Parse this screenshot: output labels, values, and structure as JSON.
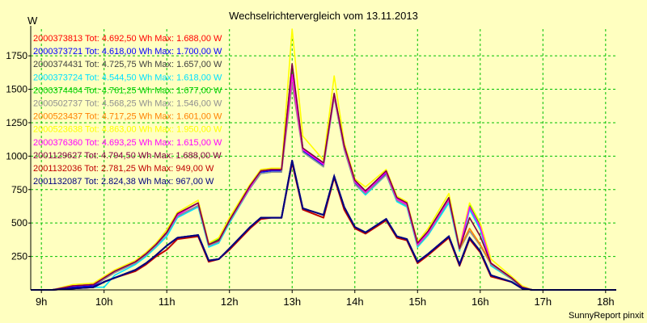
{
  "chart_data": {
    "type": "line",
    "title": "Wechselrichtervergleich vom 13.11.2013",
    "ylabel": "W",
    "xlabel": "",
    "footer": "SunnyReport pinxit",
    "ylim": [
      0,
      1950
    ],
    "xlim": [
      8.83,
      18.17
    ],
    "y_ticks": [
      250,
      500,
      750,
      1000,
      1250,
      1500,
      1750
    ],
    "x_ticks": [
      {
        "value": 9,
        "label": "9h"
      },
      {
        "value": 10,
        "label": "10h"
      },
      {
        "value": 11,
        "label": "11h"
      },
      {
        "value": 12,
        "label": "12h"
      },
      {
        "value": 13,
        "label": "13h"
      },
      {
        "value": 14,
        "label": "14h"
      },
      {
        "value": 15,
        "label": "15h"
      },
      {
        "value": 16,
        "label": "16h"
      },
      {
        "value": 17,
        "label": "17h"
      },
      {
        "value": 18,
        "label": "18h"
      }
    ],
    "grid": true,
    "legend_position": "top-left",
    "x": [
      8.83,
      9.17,
      9.5,
      9.83,
      10.0,
      10.17,
      10.5,
      10.67,
      10.83,
      11.0,
      11.17,
      11.5,
      11.67,
      11.83,
      12.0,
      12.33,
      12.5,
      12.67,
      12.83,
      13.0,
      13.17,
      13.5,
      13.67,
      13.83,
      14.0,
      14.17,
      14.5,
      14.67,
      14.83,
      15.0,
      15.17,
      15.5,
      15.67,
      15.83,
      16.0,
      16.17,
      16.5,
      16.67,
      16.83,
      17.0,
      17.17,
      17.5,
      17.67,
      17.83,
      18.0,
      18.17
    ],
    "series": [
      {
        "name": "2000373813 Tot: 4.692,50 Wh Max: 1.688,00 W",
        "color": "#ff0000",
        "values": [
          0,
          0,
          30,
          40,
          90,
          140,
          210,
          270,
          340,
          430,
          560,
          650,
          340,
          370,
          520,
          780,
          890,
          900,
          900,
          1660,
          1050,
          940,
          1460,
          1070,
          810,
          730,
          880,
          680,
          640,
          340,
          430,
          680,
          310,
          620,
          470,
          200,
          90,
          20,
          0,
          0,
          0,
          0,
          0,
          0,
          0,
          0
        ]
      },
      {
        "name": "2000373721 Tot: 4.618,00 Wh Max: 1.700,00 W",
        "color": "#0000ff",
        "values": [
          0,
          0,
          20,
          30,
          80,
          130,
          200,
          260,
          330,
          420,
          550,
          630,
          330,
          360,
          510,
          770,
          880,
          890,
          890,
          1680,
          1040,
          930,
          1450,
          1060,
          800,
          720,
          870,
          670,
          630,
          330,
          420,
          670,
          300,
          610,
          460,
          190,
          80,
          20,
          0,
          0,
          0,
          0,
          0,
          0,
          0,
          0
        ]
      },
      {
        "name": "2000374431 Tot: 4.725,75 Wh Max: 1.657,00 W",
        "color": "#404040",
        "values": [
          0,
          0,
          30,
          40,
          90,
          140,
          210,
          270,
          340,
          430,
          570,
          650,
          340,
          370,
          520,
          780,
          890,
          900,
          900,
          1640,
          1050,
          940,
          1460,
          1070,
          810,
          740,
          880,
          680,
          640,
          340,
          440,
          680,
          310,
          630,
          470,
          200,
          90,
          20,
          0,
          0,
          0,
          0,
          0,
          0,
          0,
          0
        ]
      },
      {
        "name": "2000373724 Tot: 4.544,50 Wh Max: 1.618,00 W",
        "color": "#00e0ff",
        "values": [
          0,
          0,
          10,
          20,
          20,
          110,
          190,
          250,
          320,
          400,
          540,
          620,
          320,
          350,
          500,
          760,
          870,
          880,
          880,
          1600,
          1030,
          920,
          1440,
          1050,
          790,
          710,
          860,
          660,
          620,
          320,
          410,
          650,
          290,
          600,
          450,
          180,
          80,
          10,
          0,
          0,
          0,
          0,
          0,
          0,
          0,
          0
        ]
      },
      {
        "name": "2000374404 Tot: 4.761,25 Wh Max: 1.677,00 W",
        "color": "#00d000",
        "values": [
          0,
          0,
          30,
          40,
          90,
          140,
          210,
          270,
          340,
          430,
          570,
          650,
          340,
          380,
          530,
          780,
          890,
          900,
          900,
          1660,
          1060,
          950,
          1460,
          1080,
          820,
          740,
          880,
          690,
          650,
          350,
          440,
          690,
          310,
          640,
          490,
          200,
          90,
          20,
          0,
          0,
          0,
          0,
          0,
          0,
          0,
          0
        ]
      },
      {
        "name": "2000502737 Tot: 4.568,25 Wh Max: 1.546,00 W",
        "color": "#909090",
        "values": [
          0,
          0,
          30,
          40,
          80,
          130,
          200,
          260,
          330,
          420,
          550,
          630,
          330,
          360,
          510,
          760,
          870,
          880,
          880,
          1540,
          1030,
          920,
          1440,
          1050,
          790,
          720,
          860,
          670,
          630,
          330,
          420,
          670,
          300,
          440,
          330,
          190,
          80,
          20,
          0,
          0,
          0,
          0,
          0,
          0,
          0,
          0
        ]
      },
      {
        "name": "2000523437 Tot: 4.717,25 Wh Max: 1.601,00 W",
        "color": "#ff8000",
        "values": [
          0,
          0,
          30,
          40,
          90,
          140,
          210,
          270,
          340,
          430,
          570,
          650,
          340,
          370,
          520,
          780,
          890,
          900,
          900,
          1600,
          1050,
          940,
          1460,
          1070,
          810,
          740,
          880,
          680,
          640,
          340,
          440,
          680,
          310,
          460,
          340,
          200,
          90,
          20,
          0,
          0,
          0,
          0,
          0,
          0,
          0,
          0
        ]
      },
      {
        "name": "2000523638 Tot: 4.863,00 Wh Max: 1.950,00 W",
        "color": "#ffff00",
        "values": [
          0,
          0,
          40,
          50,
          100,
          150,
          220,
          280,
          350,
          450,
          580,
          670,
          350,
          390,
          540,
          790,
          900,
          910,
          910,
          1950,
          1150,
          970,
          1600,
          1100,
          830,
          770,
          900,
          700,
          660,
          360,
          460,
          720,
          320,
          650,
          500,
          230,
          100,
          30,
          0,
          0,
          0,
          0,
          0,
          0,
          0,
          0
        ]
      },
      {
        "name": "2000376360 Tot: 4.693,25 Wh Max: 1.615,00 W",
        "color": "#ff00ff",
        "values": [
          0,
          0,
          30,
          40,
          90,
          140,
          210,
          270,
          340,
          430,
          560,
          650,
          340,
          370,
          520,
          770,
          890,
          900,
          900,
          1610,
          1050,
          940,
          1460,
          1070,
          810,
          730,
          880,
          680,
          640,
          340,
          430,
          680,
          310,
          620,
          470,
          200,
          90,
          20,
          0,
          0,
          0,
          0,
          0,
          0,
          0,
          0
        ]
      },
      {
        "name": "2001129627 Tot: 4.794,50 Wh Max: 1.688,00 W",
        "color": "#800040",
        "values": [
          0,
          0,
          30,
          40,
          90,
          140,
          210,
          270,
          340,
          430,
          570,
          650,
          340,
          370,
          520,
          780,
          890,
          900,
          900,
          1690,
          1060,
          950,
          1470,
          1080,
          820,
          740,
          890,
          690,
          650,
          350,
          440,
          690,
          310,
          540,
          400,
          200,
          90,
          20,
          0,
          0,
          0,
          0,
          0,
          0,
          0,
          0
        ]
      },
      {
        "name": "2001132036 Tot: 2.781,25 Wh Max: 949,00 W",
        "color": "#c00000",
        "values": [
          0,
          0,
          10,
          20,
          60,
          90,
          140,
          190,
          250,
          300,
          380,
          400,
          210,
          230,
          300,
          460,
          530,
          540,
          540,
          950,
          600,
          540,
          840,
          600,
          460,
          420,
          520,
          390,
          370,
          200,
          260,
          390,
          180,
          380,
          280,
          100,
          60,
          10,
          0,
          0,
          0,
          0,
          0,
          0,
          0,
          0
        ]
      },
      {
        "name": "2001132087 Tot: 2.824,38 Wh Max: 967,00 W",
        "color": "#000080",
        "values": [
          0,
          0,
          10,
          20,
          60,
          90,
          150,
          200,
          260,
          330,
          390,
          410,
          220,
          230,
          310,
          470,
          540,
          540,
          540,
          967,
          610,
          560,
          850,
          620,
          470,
          430,
          530,
          400,
          380,
          210,
          270,
          400,
          190,
          390,
          290,
          110,
          60,
          10,
          0,
          0,
          0,
          0,
          0,
          0,
          0,
          0
        ]
      }
    ]
  }
}
